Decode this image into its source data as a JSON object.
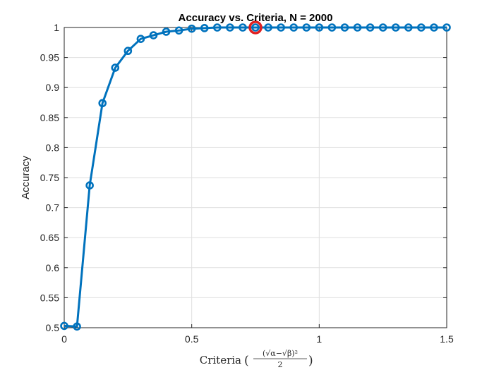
{
  "chart_data": {
    "type": "line",
    "title": "Accuracy vs. Criteria, N = 2000",
    "xlabel": "Criteria",
    "ylabel": "Accuracy",
    "xlabel_formula": {
      "open": "(",
      "numerator": "(√α−√β)²",
      "denominator": "2",
      "close": ")"
    },
    "xlim": [
      0,
      1.5
    ],
    "ylim": [
      0.5,
      1
    ],
    "xticks": [
      0,
      0.5,
      1,
      1.5
    ],
    "xtick_labels": [
      "0",
      "0.5",
      "1",
      "1.5"
    ],
    "yticks": [
      0.5,
      0.55,
      0.6,
      0.65,
      0.7,
      0.75,
      0.8,
      0.85,
      0.9,
      0.95,
      1
    ],
    "ytick_labels": [
      "0.5",
      "0.55",
      "0.6",
      "0.65",
      "0.7",
      "0.75",
      "0.8",
      "0.85",
      "0.9",
      "0.95",
      "1"
    ],
    "grid": true,
    "series": [
      {
        "color": "#0072BD",
        "marker": "circle",
        "x": [
          0,
          0.05,
          0.1,
          0.15,
          0.2,
          0.25,
          0.3,
          0.35,
          0.4,
          0.45,
          0.5,
          0.55,
          0.6,
          0.65,
          0.7,
          0.75,
          0.8,
          0.85,
          0.9,
          0.95,
          1.0,
          1.05,
          1.1,
          1.15,
          1.2,
          1.25,
          1.3,
          1.35,
          1.4,
          1.45,
          1.5
        ],
        "y": [
          0.503,
          0.502,
          0.737,
          0.874,
          0.933,
          0.961,
          0.981,
          0.987,
          0.993,
          0.995,
          0.998,
          0.999,
          1,
          1,
          1,
          1,
          1,
          1,
          1,
          1,
          1,
          1,
          1,
          1,
          1,
          1,
          1,
          1,
          1,
          1,
          1
        ]
      }
    ],
    "highlight": {
      "x": 0.75,
      "y": 1,
      "color": "#E02020"
    }
  }
}
